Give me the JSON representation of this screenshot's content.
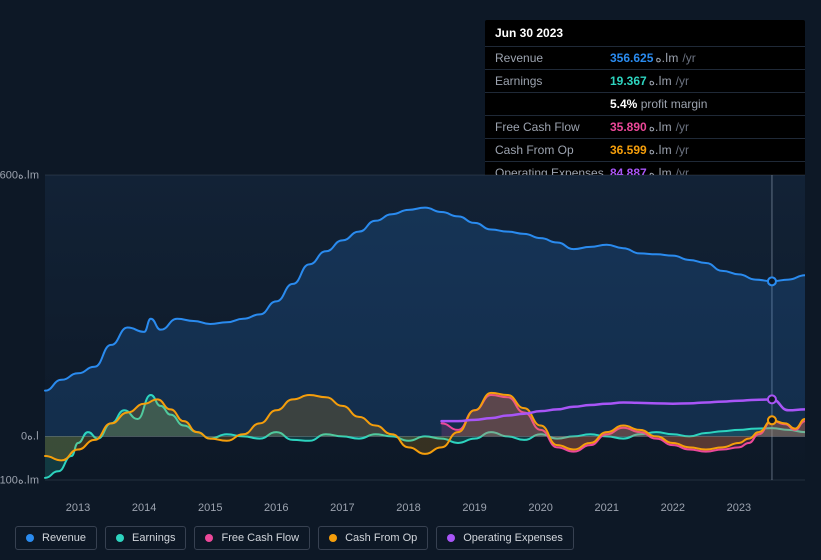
{
  "tooltip": {
    "date": "Jun 30 2023",
    "rows": [
      {
        "label": "Revenue",
        "value": "356.625",
        "unit": "ا.هm",
        "suffix": "/yr",
        "color": "#2a8bef"
      },
      {
        "label": "Earnings",
        "value": "19.367",
        "unit": "ا.هm",
        "suffix": "/yr",
        "color": "#2dd4bf",
        "sub_pct": "5.4%",
        "sub_text": "profit margin"
      },
      {
        "label": "Free Cash Flow",
        "value": "35.890",
        "unit": "ا.هm",
        "suffix": "/yr",
        "color": "#ec4899"
      },
      {
        "label": "Cash From Op",
        "value": "36.599",
        "unit": "ا.هm",
        "suffix": "/yr",
        "color": "#f59e0b"
      },
      {
        "label": "Operating Expenses",
        "value": "84.887",
        "unit": "ا.هm",
        "suffix": "/yr",
        "color": "#a855f7"
      }
    ]
  },
  "chart": {
    "background": "#0d1826",
    "plot_bg_gradient_top": "#122236",
    "plot_bg_gradient_bottom": "#0d1826",
    "grid_color": "#6b7280",
    "axis_font_size": 11,
    "ylim": [
      -100,
      600
    ],
    "y_ticks": [
      -100,
      0,
      600
    ],
    "y_tick_labels": [
      "-100ا.هm",
      "0ا.ه",
      "600ا.هm"
    ],
    "x_years": [
      2013,
      2014,
      2015,
      2016,
      2017,
      2018,
      2019,
      2020,
      2021,
      2022,
      2023
    ],
    "x_domain": [
      2012.5,
      2024.0
    ],
    "cursor_x": 2023.5,
    "series": [
      {
        "key": "revenue",
        "label": "Revenue",
        "color": "#2a8bef",
        "fill_opacity": 0.18,
        "line_width": 2,
        "points": [
          [
            2012.5,
            105
          ],
          [
            2012.75,
            130
          ],
          [
            2013.0,
            145
          ],
          [
            2013.25,
            160
          ],
          [
            2013.5,
            210
          ],
          [
            2013.75,
            250
          ],
          [
            2014.0,
            240
          ],
          [
            2014.1,
            270
          ],
          [
            2014.25,
            245
          ],
          [
            2014.5,
            270
          ],
          [
            2014.75,
            265
          ],
          [
            2015.0,
            258
          ],
          [
            2015.25,
            262
          ],
          [
            2015.5,
            270
          ],
          [
            2015.75,
            280
          ],
          [
            2016.0,
            310
          ],
          [
            2016.25,
            350
          ],
          [
            2016.5,
            395
          ],
          [
            2016.75,
            425
          ],
          [
            2017.0,
            450
          ],
          [
            2017.25,
            470
          ],
          [
            2017.5,
            495
          ],
          [
            2017.75,
            510
          ],
          [
            2018.0,
            520
          ],
          [
            2018.25,
            525
          ],
          [
            2018.5,
            515
          ],
          [
            2018.75,
            505
          ],
          [
            2019.0,
            490
          ],
          [
            2019.25,
            475
          ],
          [
            2019.5,
            470
          ],
          [
            2019.75,
            465
          ],
          [
            2020.0,
            455
          ],
          [
            2020.25,
            445
          ],
          [
            2020.5,
            430
          ],
          [
            2020.75,
            435
          ],
          [
            2021.0,
            440
          ],
          [
            2021.25,
            432
          ],
          [
            2021.5,
            420
          ],
          [
            2021.75,
            418
          ],
          [
            2022.0,
            415
          ],
          [
            2022.25,
            405
          ],
          [
            2022.5,
            398
          ],
          [
            2022.75,
            380
          ],
          [
            2023.0,
            372
          ],
          [
            2023.25,
            360
          ],
          [
            2023.5,
            356
          ],
          [
            2023.75,
            360
          ],
          [
            2024.0,
            370
          ]
        ]
      },
      {
        "key": "earnings",
        "label": "Earnings",
        "color": "#2dd4bf",
        "fill_opacity": 0.18,
        "line_width": 2,
        "points": [
          [
            2012.5,
            -95
          ],
          [
            2012.7,
            -80
          ],
          [
            2012.9,
            -45
          ],
          [
            2013.0,
            -15
          ],
          [
            2013.15,
            10
          ],
          [
            2013.3,
            -5
          ],
          [
            2013.5,
            30
          ],
          [
            2013.7,
            60
          ],
          [
            2013.9,
            40
          ],
          [
            2014.1,
            95
          ],
          [
            2014.25,
            70
          ],
          [
            2014.4,
            50
          ],
          [
            2014.6,
            25
          ],
          [
            2014.8,
            10
          ],
          [
            2015.0,
            -5
          ],
          [
            2015.25,
            5
          ],
          [
            2015.5,
            0
          ],
          [
            2015.75,
            -5
          ],
          [
            2016.0,
            10
          ],
          [
            2016.25,
            -8
          ],
          [
            2016.5,
            -10
          ],
          [
            2016.75,
            5
          ],
          [
            2017.0,
            0
          ],
          [
            2017.25,
            -5
          ],
          [
            2017.5,
            5
          ],
          [
            2017.75,
            0
          ],
          [
            2018.0,
            -10
          ],
          [
            2018.25,
            0
          ],
          [
            2018.5,
            -5
          ],
          [
            2018.75,
            -15
          ],
          [
            2019.0,
            -5
          ],
          [
            2019.25,
            10
          ],
          [
            2019.5,
            0
          ],
          [
            2019.75,
            -8
          ],
          [
            2020.0,
            5
          ],
          [
            2020.25,
            -5
          ],
          [
            2020.5,
            0
          ],
          [
            2020.75,
            5
          ],
          [
            2021.0,
            0
          ],
          [
            2021.25,
            -5
          ],
          [
            2021.5,
            5
          ],
          [
            2021.75,
            10
          ],
          [
            2022.0,
            5
          ],
          [
            2022.25,
            0
          ],
          [
            2022.5,
            8
          ],
          [
            2022.75,
            12
          ],
          [
            2023.0,
            15
          ],
          [
            2023.25,
            18
          ],
          [
            2023.5,
            19
          ],
          [
            2023.75,
            15
          ],
          [
            2024.0,
            10
          ]
        ]
      },
      {
        "key": "fcf",
        "label": "Free Cash Flow",
        "color": "#ec4899",
        "fill_opacity": 0.18,
        "line_width": 2,
        "points": [
          [
            2018.5,
            30
          ],
          [
            2018.75,
            15
          ],
          [
            2019.0,
            60
          ],
          [
            2019.25,
            95
          ],
          [
            2019.5,
            90
          ],
          [
            2019.75,
            55
          ],
          [
            2020.0,
            15
          ],
          [
            2020.25,
            -25
          ],
          [
            2020.5,
            -35
          ],
          [
            2020.75,
            -20
          ],
          [
            2021.0,
            5
          ],
          [
            2021.25,
            20
          ],
          [
            2021.5,
            10
          ],
          [
            2021.75,
            -5
          ],
          [
            2022.0,
            -20
          ],
          [
            2022.25,
            -30
          ],
          [
            2022.5,
            -35
          ],
          [
            2022.75,
            -30
          ],
          [
            2023.0,
            -25
          ],
          [
            2023.15,
            -15
          ],
          [
            2023.3,
            5
          ],
          [
            2023.5,
            36
          ],
          [
            2023.7,
            28
          ],
          [
            2023.85,
            15
          ],
          [
            2024.0,
            35
          ]
        ]
      },
      {
        "key": "cfo",
        "label": "Cash From Op",
        "color": "#f59e0b",
        "fill_opacity": 0.18,
        "line_width": 2,
        "points": [
          [
            2012.5,
            -45
          ],
          [
            2012.75,
            -55
          ],
          [
            2013.0,
            -30
          ],
          [
            2013.25,
            -8
          ],
          [
            2013.5,
            30
          ],
          [
            2013.75,
            55
          ],
          [
            2014.0,
            75
          ],
          [
            2014.2,
            85
          ],
          [
            2014.4,
            62
          ],
          [
            2014.6,
            35
          ],
          [
            2014.8,
            10
          ],
          [
            2015.0,
            -5
          ],
          [
            2015.25,
            -10
          ],
          [
            2015.5,
            5
          ],
          [
            2015.75,
            30
          ],
          [
            2016.0,
            60
          ],
          [
            2016.25,
            85
          ],
          [
            2016.5,
            95
          ],
          [
            2016.75,
            90
          ],
          [
            2017.0,
            70
          ],
          [
            2017.25,
            45
          ],
          [
            2017.5,
            25
          ],
          [
            2017.75,
            5
          ],
          [
            2018.0,
            -25
          ],
          [
            2018.25,
            -40
          ],
          [
            2018.5,
            -25
          ],
          [
            2018.75,
            10
          ],
          [
            2019.0,
            60
          ],
          [
            2019.25,
            100
          ],
          [
            2019.5,
            95
          ],
          [
            2019.75,
            65
          ],
          [
            2020.0,
            25
          ],
          [
            2020.25,
            -20
          ],
          [
            2020.5,
            -30
          ],
          [
            2020.75,
            -15
          ],
          [
            2021.0,
            10
          ],
          [
            2021.25,
            25
          ],
          [
            2021.5,
            15
          ],
          [
            2021.75,
            0
          ],
          [
            2022.0,
            -15
          ],
          [
            2022.25,
            -25
          ],
          [
            2022.5,
            -30
          ],
          [
            2022.75,
            -25
          ],
          [
            2023.0,
            -15
          ],
          [
            2023.15,
            -5
          ],
          [
            2023.3,
            10
          ],
          [
            2023.5,
            37
          ],
          [
            2023.7,
            30
          ],
          [
            2023.85,
            18
          ],
          [
            2024.0,
            40
          ]
        ]
      },
      {
        "key": "opex",
        "label": "Operating Expenses",
        "color": "#a855f7",
        "fill_opacity": 0.0,
        "line_width": 2.5,
        "points": [
          [
            2018.5,
            35
          ],
          [
            2018.75,
            35
          ],
          [
            2019.0,
            38
          ],
          [
            2019.25,
            42
          ],
          [
            2019.5,
            48
          ],
          [
            2019.75,
            52
          ],
          [
            2020.0,
            58
          ],
          [
            2020.25,
            62
          ],
          [
            2020.5,
            68
          ],
          [
            2020.75,
            72
          ],
          [
            2021.0,
            75
          ],
          [
            2021.25,
            78
          ],
          [
            2021.5,
            77
          ],
          [
            2021.75,
            76
          ],
          [
            2022.0,
            75
          ],
          [
            2022.25,
            76
          ],
          [
            2022.5,
            78
          ],
          [
            2022.75,
            80
          ],
          [
            2023.0,
            82
          ],
          [
            2023.25,
            84
          ],
          [
            2023.5,
            85
          ],
          [
            2023.75,
            60
          ],
          [
            2024.0,
            62
          ]
        ]
      }
    ],
    "end_markers": [
      {
        "key": "revenue",
        "color": "#2a8bef",
        "x": 2023.5,
        "y": 356
      },
      {
        "key": "opex",
        "color": "#a855f7",
        "x": 2023.5,
        "y": 85
      },
      {
        "key": "cfo",
        "color": "#f59e0b",
        "x": 2023.5,
        "y": 37
      }
    ]
  },
  "legend": [
    {
      "key": "revenue",
      "label": "Revenue",
      "color": "#2a8bef"
    },
    {
      "key": "earnings",
      "label": "Earnings",
      "color": "#2dd4bf"
    },
    {
      "key": "fcf",
      "label": "Free Cash Flow",
      "color": "#ec4899"
    },
    {
      "key": "cfo",
      "label": "Cash From Op",
      "color": "#f59e0b"
    },
    {
      "key": "opex",
      "label": "Operating Expenses",
      "color": "#a855f7"
    }
  ]
}
